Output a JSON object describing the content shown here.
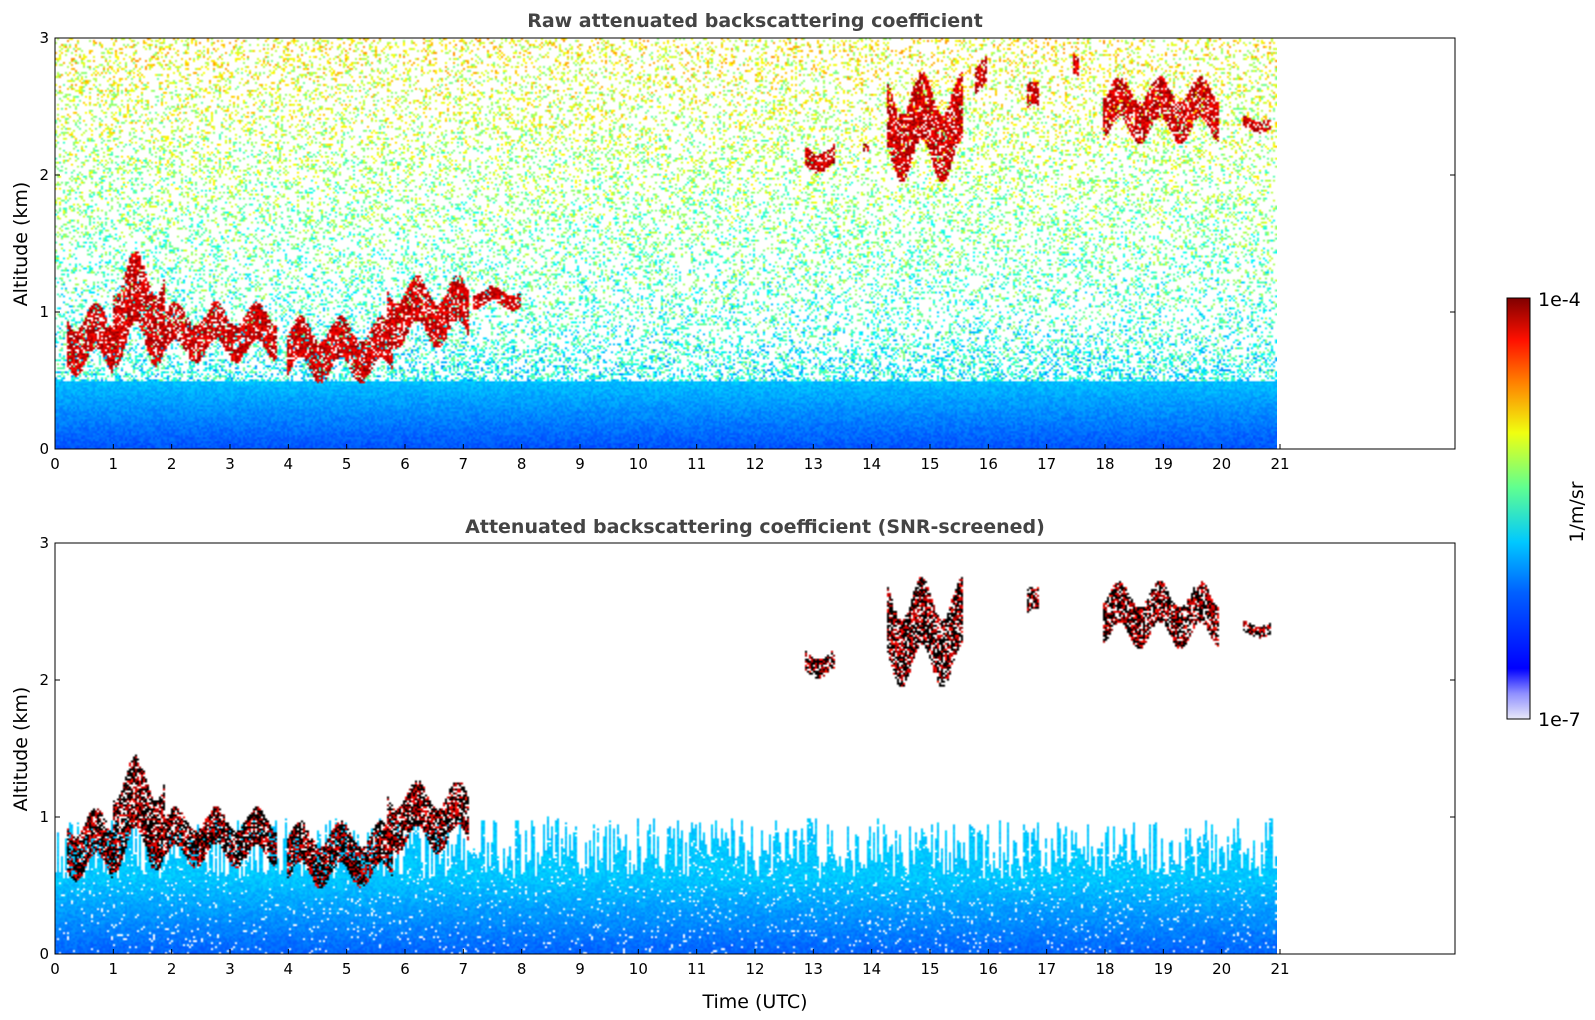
{
  "chart_data": [
    {
      "type": "heatmap",
      "title": "Raw attenuated backscattering coefficient",
      "xlabel": "",
      "ylabel": "Altitude (km)",
      "xlim": [
        0,
        24
      ],
      "ylim": [
        0,
        3
      ],
      "data_xlim": [
        0,
        21
      ],
      "xticks": [
        "0",
        "1",
        "2",
        "3",
        "4",
        "5",
        "6",
        "7",
        "8",
        "9",
        "10",
        "11",
        "12",
        "13",
        "14",
        "15",
        "16",
        "17",
        "18",
        "19",
        "20",
        "21"
      ],
      "yticks": [
        "0",
        "1",
        "2",
        "3"
      ],
      "screened": false,
      "cloud_features": [
        {
          "x": [
            0.2,
            1.0
          ],
          "y": [
            0.5,
            1.1
          ],
          "level": "high"
        },
        {
          "x": [
            1.0,
            1.9
          ],
          "y": [
            0.55,
            1.5
          ],
          "level": "high"
        },
        {
          "x": [
            1.9,
            3.8
          ],
          "y": [
            0.6,
            1.1
          ],
          "level": "high"
        },
        {
          "x": [
            4.0,
            5.8
          ],
          "y": [
            0.45,
            1.0
          ],
          "level": "high"
        },
        {
          "x": [
            5.7,
            7.1
          ],
          "y": [
            0.7,
            1.3
          ],
          "level": "high"
        },
        {
          "x": [
            7.2,
            8.0
          ],
          "y": [
            1.0,
            1.2
          ],
          "level": "high"
        },
        {
          "x": [
            12.9,
            13.4
          ],
          "y": [
            2.0,
            2.25
          ],
          "level": "high"
        },
        {
          "x": [
            13.9,
            14.0
          ],
          "y": [
            2.15,
            2.25
          ],
          "level": "high"
        },
        {
          "x": [
            14.3,
            15.6
          ],
          "y": [
            1.9,
            2.8
          ],
          "level": "high"
        },
        {
          "x": [
            15.8,
            16.0
          ],
          "y": [
            2.55,
            2.9
          ],
          "level": "high"
        },
        {
          "x": [
            16.7,
            16.9
          ],
          "y": [
            2.4,
            2.7
          ],
          "level": "high"
        },
        {
          "x": [
            17.5,
            17.6
          ],
          "y": [
            2.65,
            2.9
          ],
          "level": "high"
        },
        {
          "x": [
            18.0,
            20.0
          ],
          "y": [
            2.2,
            2.75
          ],
          "level": "high"
        },
        {
          "x": [
            20.4,
            20.9
          ],
          "y": [
            2.3,
            2.45
          ],
          "level": "high"
        }
      ]
    },
    {
      "type": "heatmap",
      "title": "Attenuated backscattering coefficient (SNR-screened)",
      "xlabel": "Time (UTC)",
      "ylabel": "Altitude (km)",
      "xlim": [
        0,
        24
      ],
      "ylim": [
        0,
        3
      ],
      "data_xlim": [
        0,
        21
      ],
      "xticks": [
        "0",
        "1",
        "2",
        "3",
        "4",
        "5",
        "6",
        "7",
        "8",
        "9",
        "10",
        "11",
        "12",
        "13",
        "14",
        "15",
        "16",
        "17",
        "18",
        "19",
        "20",
        "21"
      ],
      "yticks": [
        "0",
        "1",
        "2",
        "3"
      ],
      "screened": true,
      "cloud_features": [
        {
          "x": [
            0.2,
            1.0
          ],
          "y": [
            0.5,
            1.1
          ],
          "level": "high"
        },
        {
          "x": [
            1.0,
            1.9
          ],
          "y": [
            0.55,
            1.5
          ],
          "level": "high"
        },
        {
          "x": [
            1.9,
            3.8
          ],
          "y": [
            0.6,
            1.1
          ],
          "level": "high"
        },
        {
          "x": [
            4.0,
            5.8
          ],
          "y": [
            0.45,
            1.0
          ],
          "level": "high"
        },
        {
          "x": [
            5.7,
            7.1
          ],
          "y": [
            0.7,
            1.3
          ],
          "level": "high"
        },
        {
          "x": [
            12.9,
            13.4
          ],
          "y": [
            2.0,
            2.25
          ],
          "level": "high"
        },
        {
          "x": [
            14.3,
            15.6
          ],
          "y": [
            1.9,
            2.8
          ],
          "level": "high"
        },
        {
          "x": [
            16.7,
            16.9
          ],
          "y": [
            2.4,
            2.7
          ],
          "level": "high"
        },
        {
          "x": [
            18.0,
            20.0
          ],
          "y": [
            2.2,
            2.75
          ],
          "level": "high"
        },
        {
          "x": [
            20.4,
            20.9
          ],
          "y": [
            2.3,
            2.45
          ],
          "level": "high"
        }
      ]
    }
  ],
  "colorbar": {
    "label": "1/m/sr",
    "min_label": "1e-7",
    "max_label": "1e-4",
    "colormap": "jet",
    "scale": "log",
    "range": [
      1e-07,
      0.0001
    ]
  },
  "colors": {
    "background": "#ffffff",
    "title": "#444444",
    "cloud_core": "#8b0000",
    "screened_core": "#000000",
    "low_signal": "#0a1eff"
  }
}
